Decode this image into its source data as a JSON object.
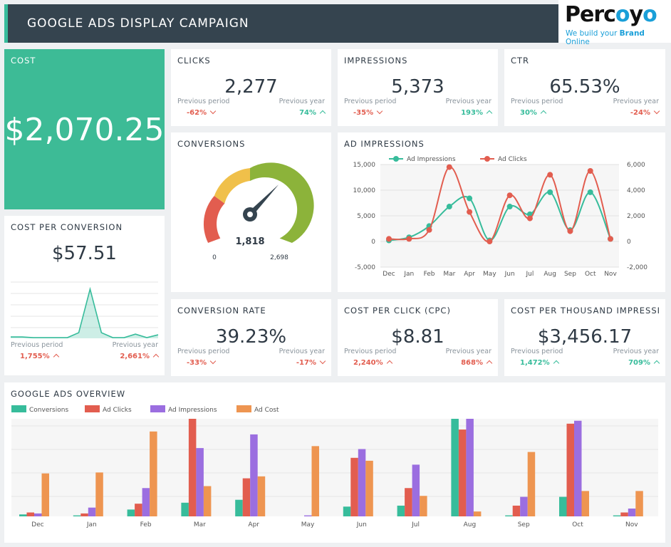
{
  "header": {
    "title": "GOOGLE ADS DISPLAY CAMPAIGN"
  },
  "logo": {
    "brand_a": "Perc",
    "brand_b": "o",
    "brand_c": "y",
    "brand_d": "o",
    "tag_a": "We build your ",
    "tag_b": "Brand",
    "tag_c": " Online"
  },
  "colors": {
    "accent": "#37bc9b",
    "red": "#e25d4f",
    "purple": "#9b6ee0",
    "orange": "#ee9551",
    "header": "#35444f"
  },
  "cost": {
    "label": "COST",
    "value": "$2,070.25"
  },
  "clicks": {
    "label": "CLICKS",
    "value": "2,277",
    "prev_period_label": "Previous period",
    "prev_year_label": "Previous year",
    "prev_period": "-62%",
    "prev_year": "74%"
  },
  "impressions": {
    "label": "IMPRESSIONS",
    "value": "5,373",
    "prev_period_label": "Previous period",
    "prev_year_label": "Previous year",
    "prev_period": "-35%",
    "prev_year": "193%"
  },
  "ctr": {
    "label": "CTR",
    "value": "65.53%",
    "prev_period_label": "Previous period",
    "prev_year_label": "Previous year",
    "prev_period": "30%",
    "prev_year": "-24%"
  },
  "conversions": {
    "label": "CONVERSIONS",
    "value": "1,818",
    "min": "0",
    "max": "2,698",
    "current": 1818,
    "max_value": 2698
  },
  "cpc_conv": {
    "label": "COST PER CONVERSION",
    "value": "$57.51",
    "prev_period_label": "Previous period",
    "prev_year_label": "Previous year",
    "prev_period": "1,755%",
    "prev_year": "2,661%"
  },
  "conv_rate": {
    "label": "CONVERSION RATE",
    "value": "39.23%",
    "prev_period_label": "Previous period",
    "prev_year_label": "Previous year",
    "prev_period": "-33%",
    "prev_year": "-17%"
  },
  "cpc": {
    "label": "COST PER CLICK (CPC)",
    "value": "$8.81",
    "prev_period_label": "Previous period",
    "prev_year_label": "Previous year",
    "prev_period": "2,240%",
    "prev_year": "868%"
  },
  "cpm": {
    "label": "COST PER THOUSAND IMPRESSIO...",
    "value": "$3,456.17",
    "prev_period_label": "Previous period",
    "prev_year_label": "Previous year",
    "prev_period": "1,472%",
    "prev_year": "709%"
  },
  "ad_impressions_title": "AD IMPRESSIONS",
  "overview_title": "GOOGLE ADS OVERVIEW",
  "chart_data": [
    {
      "type": "line",
      "categories": [
        "Dec",
        "Jan",
        "Feb",
        "Mar",
        "Apr",
        "May",
        "Jun",
        "Jul",
        "Aug",
        "Sep",
        "Oct",
        "Nov"
      ],
      "series": [
        {
          "name": "Ad Impressions",
          "axis": "left",
          "color": "#37bc9b",
          "values": [
            200,
            800,
            3000,
            6800,
            8400,
            200,
            6800,
            5300,
            9600,
            2200,
            9600,
            500
          ]
        },
        {
          "name": "Ad Clicks",
          "axis": "right",
          "color": "#e25d4f",
          "values": [
            200,
            200,
            900,
            5800,
            2300,
            0,
            3600,
            1800,
            5200,
            800,
            5500,
            200
          ]
        }
      ],
      "ylim_left": [
        -5000,
        15000
      ],
      "ylim_right": [
        -2000,
        6000
      ],
      "yticks_left": [
        "15,000",
        "10,000",
        "5,000",
        "0",
        "-5,000"
      ],
      "yticks_right": [
        "6,000",
        "4,000",
        "2,000",
        "0",
        "-2,000"
      ],
      "grid": true,
      "legend": "top"
    },
    {
      "type": "bar",
      "categories": [
        "Dec",
        "Jan",
        "Feb",
        "Mar",
        "Apr",
        "May",
        "Jun",
        "Jul",
        "Aug",
        "Sep",
        "Oct",
        "Nov"
      ],
      "series": [
        {
          "name": "Conversions",
          "color": "#37bc9b",
          "values": [
            2,
            1,
            7,
            14,
            17,
            0,
            10,
            11,
            100,
            1,
            20,
            1
          ]
        },
        {
          "name": "Ad Clicks",
          "color": "#e25d4f",
          "values": [
            4,
            3,
            13,
            100,
            39,
            0,
            60,
            29,
            89,
            11,
            95,
            4
          ]
        },
        {
          "name": "Ad Impressions",
          "color": "#9b6ee0",
          "values": [
            3,
            9,
            29,
            70,
            84,
            1,
            69,
            53,
            100,
            20,
            98,
            8
          ]
        },
        {
          "name": "Ad Cost",
          "color": "#ee9551",
          "values": [
            44,
            45,
            87,
            31,
            41,
            72,
            57,
            21,
            5,
            66,
            26,
            26
          ]
        }
      ],
      "legend": "top-left"
    },
    {
      "type": "area",
      "values": [
        2,
        2,
        1,
        1,
        1,
        1,
        8,
        70,
        8,
        1,
        1,
        6,
        1,
        5
      ],
      "ylim": [
        0,
        80
      ]
    }
  ]
}
